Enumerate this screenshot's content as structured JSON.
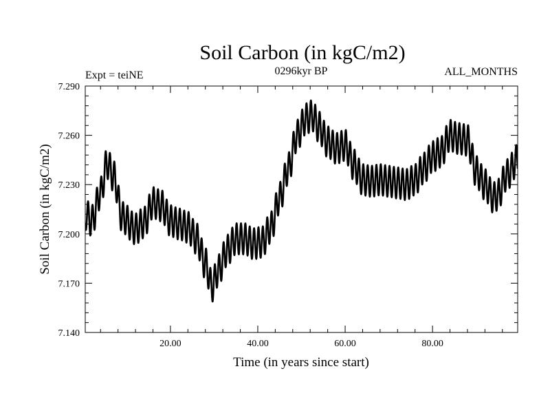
{
  "chart_data": {
    "type": "line",
    "title": "Soil Carbon (in kgC/m2)",
    "subtitle_left": "Expt = teiNE",
    "subtitle_center": "0296kyr BP",
    "subtitle_right": "ALL_MONTHS",
    "xlabel": "Time (in years since start)",
    "ylabel": "Soil Carbon (in kgC/m2)",
    "xlim": [
      0.5,
      99.5
    ],
    "ylim": [
      7.14,
      7.29
    ],
    "xticks": [
      20,
      40,
      60,
      80
    ],
    "xtick_labels": [
      "20.00",
      "40.00",
      "60.00",
      "80.00"
    ],
    "yticks": [
      7.14,
      7.17,
      7.2,
      7.23,
      7.26,
      7.29
    ],
    "ytick_labels": [
      "7.140",
      "7.170",
      "7.200",
      "7.230",
      "7.260",
      "7.290"
    ],
    "series": [
      {
        "name": "Soil Carbon",
        "color": "#000000",
        "seasonal_amplitude": 0.0095,
        "x": [
          0.5,
          2,
          4,
          5.5,
          7,
          9,
          12,
          14,
          16,
          18,
          20,
          22,
          24,
          26,
          28,
          29.5,
          31,
          33,
          35,
          37,
          39,
          41,
          43,
          45,
          47,
          49,
          51,
          52.5,
          54,
          56,
          58,
          60,
          62,
          64,
          66,
          68,
          70,
          72,
          74,
          76,
          78,
          80,
          82,
          84,
          86,
          88,
          90,
          92,
          94,
          95,
          97,
          99.5
        ],
        "values": [
          7.212,
          7.208,
          7.225,
          7.243,
          7.235,
          7.21,
          7.203,
          7.207,
          7.219,
          7.217,
          7.208,
          7.206,
          7.204,
          7.197,
          7.182,
          7.168,
          7.178,
          7.19,
          7.197,
          7.197,
          7.194,
          7.195,
          7.204,
          7.222,
          7.24,
          7.26,
          7.27,
          7.272,
          7.265,
          7.256,
          7.252,
          7.254,
          7.242,
          7.233,
          7.232,
          7.233,
          7.232,
          7.231,
          7.23,
          7.233,
          7.24,
          7.247,
          7.25,
          7.26,
          7.258,
          7.257,
          7.238,
          7.23,
          7.222,
          7.224,
          7.236,
          7.245
        ]
      }
    ]
  }
}
